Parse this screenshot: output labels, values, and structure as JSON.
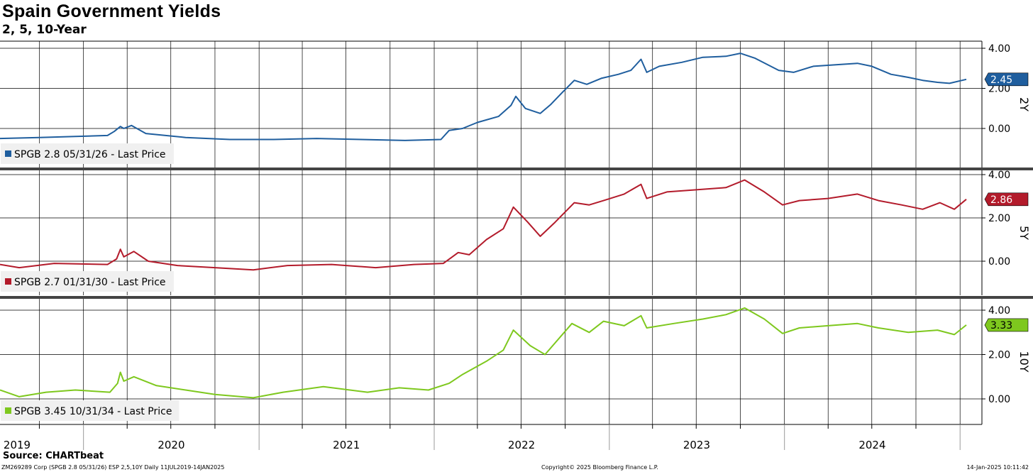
{
  "header": {
    "title": "Spain Government Yields",
    "subtitle": "2, 5, 10-Year"
  },
  "chart_data": {
    "type": "line",
    "x_ticks": [
      "2019",
      "2020",
      "2021",
      "2022",
      "2023",
      "2024"
    ],
    "x_range": [
      "2019-07-11",
      "2025-01-14"
    ],
    "y_ticks": [
      "4.00",
      "2.00",
      "0.00"
    ],
    "y_range": [
      -1.0,
      4.0
    ],
    "grid": true,
    "legend_position": "bottom-left",
    "panels": [
      {
        "axis_label": "2Y",
        "legend": "SPGB 2.8 05/31/26 - Last Price",
        "last_value_label": "2.45",
        "color": "#1f5e9e",
        "series": [
          [
            "2019-07-11",
            -0.5
          ],
          [
            "2019-10-01",
            -0.45
          ],
          [
            "2019-12-15",
            -0.4
          ],
          [
            "2020-02-20",
            -0.35
          ],
          [
            "2020-03-05",
            -0.15
          ],
          [
            "2020-03-18",
            0.1
          ],
          [
            "2020-03-25",
            0.0
          ],
          [
            "2020-04-10",
            0.15
          ],
          [
            "2020-05-10",
            -0.25
          ],
          [
            "2020-08-01",
            -0.45
          ],
          [
            "2020-11-01",
            -0.55
          ],
          [
            "2021-02-01",
            -0.55
          ],
          [
            "2021-05-01",
            -0.5
          ],
          [
            "2021-08-01",
            -0.55
          ],
          [
            "2021-11-01",
            -0.6
          ],
          [
            "2022-01-15",
            -0.55
          ],
          [
            "2022-02-01",
            -0.1
          ],
          [
            "2022-03-01",
            0.0
          ],
          [
            "2022-04-01",
            0.3
          ],
          [
            "2022-05-15",
            0.6
          ],
          [
            "2022-06-10",
            1.15
          ],
          [
            "2022-06-20",
            1.6
          ],
          [
            "2022-07-10",
            1.0
          ],
          [
            "2022-08-10",
            0.75
          ],
          [
            "2022-09-01",
            1.2
          ],
          [
            "2022-09-25",
            1.8
          ],
          [
            "2022-10-20",
            2.4
          ],
          [
            "2022-11-15",
            2.2
          ],
          [
            "2022-12-15",
            2.5
          ],
          [
            "2023-01-20",
            2.7
          ],
          [
            "2023-02-15",
            2.9
          ],
          [
            "2023-03-08",
            3.45
          ],
          [
            "2023-03-20",
            2.8
          ],
          [
            "2023-04-15",
            3.1
          ],
          [
            "2023-06-01",
            3.3
          ],
          [
            "2023-07-15",
            3.55
          ],
          [
            "2023-09-01",
            3.6
          ],
          [
            "2023-10-01",
            3.75
          ],
          [
            "2023-11-01",
            3.5
          ],
          [
            "2023-12-20",
            2.9
          ],
          [
            "2024-01-20",
            2.8
          ],
          [
            "2024-03-01",
            3.1
          ],
          [
            "2024-05-01",
            3.2
          ],
          [
            "2024-06-01",
            3.25
          ],
          [
            "2024-07-01",
            3.1
          ],
          [
            "2024-08-10",
            2.7
          ],
          [
            "2024-09-15",
            2.55
          ],
          [
            "2024-10-15",
            2.4
          ],
          [
            "2024-11-15",
            2.3
          ],
          [
            "2024-12-10",
            2.25
          ],
          [
            "2025-01-14",
            2.45
          ]
        ]
      },
      {
        "axis_label": "5Y",
        "legend": "SPGB 2.7 01/31/30 - Last Price",
        "last_value_label": "2.86",
        "color": "#b31b2b",
        "series": [
          [
            "2019-07-11",
            -0.15
          ],
          [
            "2019-08-20",
            -0.3
          ],
          [
            "2019-11-01",
            -0.1
          ],
          [
            "2020-02-20",
            -0.15
          ],
          [
            "2020-03-10",
            0.1
          ],
          [
            "2020-03-18",
            0.55
          ],
          [
            "2020-03-25",
            0.2
          ],
          [
            "2020-04-15",
            0.45
          ],
          [
            "2020-05-15",
            0.0
          ],
          [
            "2020-07-15",
            -0.2
          ],
          [
            "2020-10-01",
            -0.3
          ],
          [
            "2020-12-20",
            -0.4
          ],
          [
            "2021-03-01",
            -0.2
          ],
          [
            "2021-06-01",
            -0.15
          ],
          [
            "2021-09-01",
            -0.3
          ],
          [
            "2021-11-20",
            -0.15
          ],
          [
            "2022-01-20",
            -0.1
          ],
          [
            "2022-02-20",
            0.4
          ],
          [
            "2022-03-15",
            0.3
          ],
          [
            "2022-04-20",
            1.0
          ],
          [
            "2022-05-25",
            1.5
          ],
          [
            "2022-06-15",
            2.5
          ],
          [
            "2022-07-15",
            1.8
          ],
          [
            "2022-08-10",
            1.15
          ],
          [
            "2022-09-10",
            1.8
          ],
          [
            "2022-10-20",
            2.7
          ],
          [
            "2022-11-20",
            2.6
          ],
          [
            "2022-12-20",
            2.8
          ],
          [
            "2023-02-01",
            3.1
          ],
          [
            "2023-03-08",
            3.55
          ],
          [
            "2023-03-20",
            2.9
          ],
          [
            "2023-05-01",
            3.2
          ],
          [
            "2023-07-01",
            3.3
          ],
          [
            "2023-09-01",
            3.4
          ],
          [
            "2023-10-10",
            3.75
          ],
          [
            "2023-11-20",
            3.2
          ],
          [
            "2023-12-28",
            2.6
          ],
          [
            "2024-02-01",
            2.8
          ],
          [
            "2024-04-01",
            2.9
          ],
          [
            "2024-06-01",
            3.1
          ],
          [
            "2024-07-15",
            2.8
          ],
          [
            "2024-09-01",
            2.6
          ],
          [
            "2024-10-15",
            2.4
          ],
          [
            "2024-11-20",
            2.7
          ],
          [
            "2024-12-20",
            2.4
          ],
          [
            "2025-01-14",
            2.86
          ]
        ]
      },
      {
        "axis_label": "10Y",
        "legend": "SPGB 3.45 10/31/34 - Last Price",
        "last_value_label": "3.33",
        "color": "#7ec81e",
        "series": [
          [
            "2019-07-11",
            0.4
          ],
          [
            "2019-08-20",
            0.1
          ],
          [
            "2019-10-15",
            0.3
          ],
          [
            "2019-12-15",
            0.4
          ],
          [
            "2020-02-25",
            0.3
          ],
          [
            "2020-03-12",
            0.7
          ],
          [
            "2020-03-18",
            1.2
          ],
          [
            "2020-03-25",
            0.8
          ],
          [
            "2020-04-15",
            1.0
          ],
          [
            "2020-06-01",
            0.6
          ],
          [
            "2020-08-01",
            0.4
          ],
          [
            "2020-10-01",
            0.2
          ],
          [
            "2020-12-20",
            0.05
          ],
          [
            "2021-02-20",
            0.3
          ],
          [
            "2021-05-15",
            0.55
          ],
          [
            "2021-08-15",
            0.3
          ],
          [
            "2021-10-20",
            0.5
          ],
          [
            "2021-12-20",
            0.4
          ],
          [
            "2022-02-01",
            0.7
          ],
          [
            "2022-03-01",
            1.1
          ],
          [
            "2022-04-20",
            1.7
          ],
          [
            "2022-05-25",
            2.2
          ],
          [
            "2022-06-15",
            3.1
          ],
          [
            "2022-07-20",
            2.4
          ],
          [
            "2022-08-20",
            2.0
          ],
          [
            "2022-10-15",
            3.4
          ],
          [
            "2022-11-20",
            3.0
          ],
          [
            "2022-12-20",
            3.5
          ],
          [
            "2023-02-01",
            3.3
          ],
          [
            "2023-03-08",
            3.75
          ],
          [
            "2023-03-20",
            3.2
          ],
          [
            "2023-05-15",
            3.4
          ],
          [
            "2023-07-15",
            3.6
          ],
          [
            "2023-09-01",
            3.8
          ],
          [
            "2023-10-10",
            4.1
          ],
          [
            "2023-11-20",
            3.6
          ],
          [
            "2023-12-28",
            2.95
          ],
          [
            "2024-02-01",
            3.2
          ],
          [
            "2024-04-01",
            3.3
          ],
          [
            "2024-06-01",
            3.4
          ],
          [
            "2024-07-15",
            3.2
          ],
          [
            "2024-09-15",
            3.0
          ],
          [
            "2024-11-15",
            3.1
          ],
          [
            "2024-12-20",
            2.9
          ],
          [
            "2025-01-14",
            3.33
          ]
        ]
      }
    ]
  },
  "footer": {
    "source": "Source: CHARTbeat",
    "left": "ZM269289 Corp (SPGB 2.8 05/31/26) ESP 2,5,10Y  Daily 11JUL2019-14JAN2025",
    "center": "Copyright© 2025 Bloomberg Finance L.P.",
    "right": "14-Jan-2025 10:11:42"
  }
}
